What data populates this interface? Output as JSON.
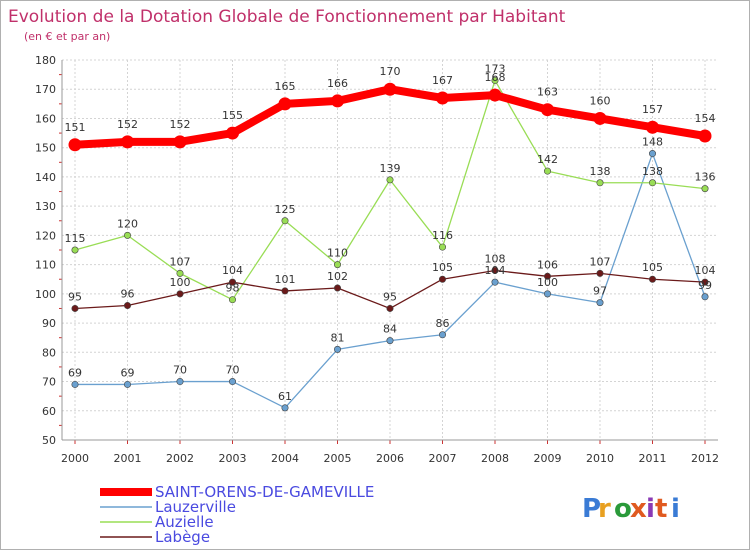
{
  "title": "Evolution de la Dotation Globale de Fonctionnement par Habitant",
  "subtitle": "(en € et par an)",
  "logo": "Proxiti",
  "chart_data": {
    "type": "line",
    "x": [
      "2000",
      "2001",
      "2002",
      "2003",
      "2004",
      "2005",
      "2006",
      "2007",
      "2008",
      "2009",
      "2010",
      "2011",
      "2012"
    ],
    "ylim": [
      50,
      180
    ],
    "yticks": [
      50,
      60,
      70,
      80,
      90,
      100,
      110,
      120,
      130,
      140,
      150,
      160,
      170,
      180
    ],
    "grid": true,
    "legend_position": "bottom-left",
    "series": [
      {
        "name": "SAINT-ORENS-DE-GAMEVILLE",
        "color": "#ff0000",
        "values": [
          151,
          152,
          152,
          155,
          165,
          166,
          170,
          167,
          168,
          163,
          160,
          157,
          154
        ]
      },
      {
        "name": "Lauzerville",
        "color": "#6aa0cf",
        "values": [
          69,
          69,
          70,
          70,
          61,
          81,
          84,
          86,
          104,
          100,
          97,
          148,
          99
        ]
      },
      {
        "name": "Auzielle",
        "color": "#99dd55",
        "values": [
          115,
          120,
          107,
          98,
          125,
          110,
          139,
          116,
          173,
          142,
          138,
          138,
          136
        ]
      },
      {
        "name": "Labège",
        "color": "#6b1a1a",
        "values": [
          95,
          96,
          100,
          104,
          101,
          102,
          95,
          105,
          108,
          106,
          107,
          105,
          104
        ]
      }
    ]
  }
}
